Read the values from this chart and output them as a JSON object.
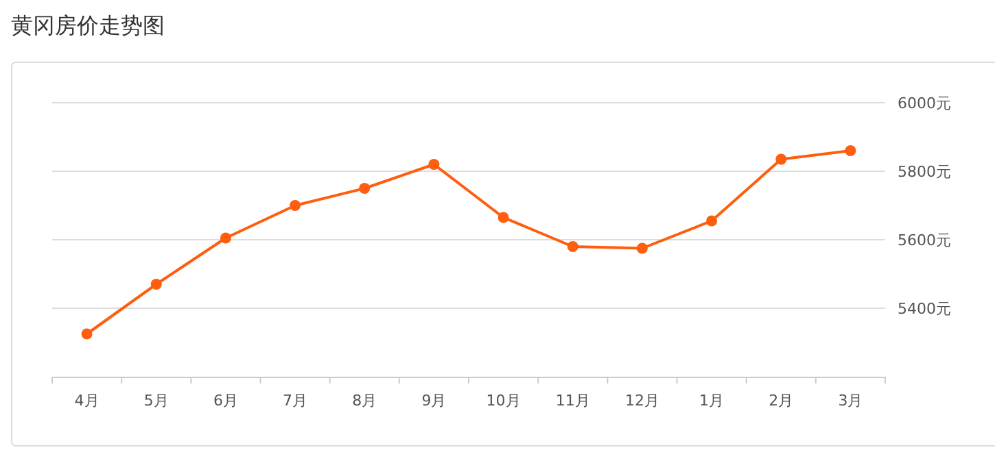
{
  "chart_data": {
    "type": "line",
    "title": "黄冈房价走势图",
    "categories": [
      "4月",
      "5月",
      "6月",
      "7月",
      "8月",
      "9月",
      "10月",
      "11月",
      "12月",
      "1月",
      "2月",
      "3月"
    ],
    "series": [
      {
        "color": "#ff5e0e",
        "values": [
          5325,
          5470,
          5605,
          5700,
          5750,
          5820,
          5665,
          5580,
          5575,
          5655,
          5835,
          5860
        ]
      }
    ],
    "ylim": [
      5200,
      6000
    ],
    "yticks": [
      {
        "value": 5400,
        "label": "5400元"
      },
      {
        "value": 5600,
        "label": "5600元"
      },
      {
        "value": 5800,
        "label": "5800元"
      },
      {
        "value": 6000,
        "label": "6000元"
      }
    ],
    "grid": "y",
    "marker": "circle",
    "line_style": "solid"
  }
}
